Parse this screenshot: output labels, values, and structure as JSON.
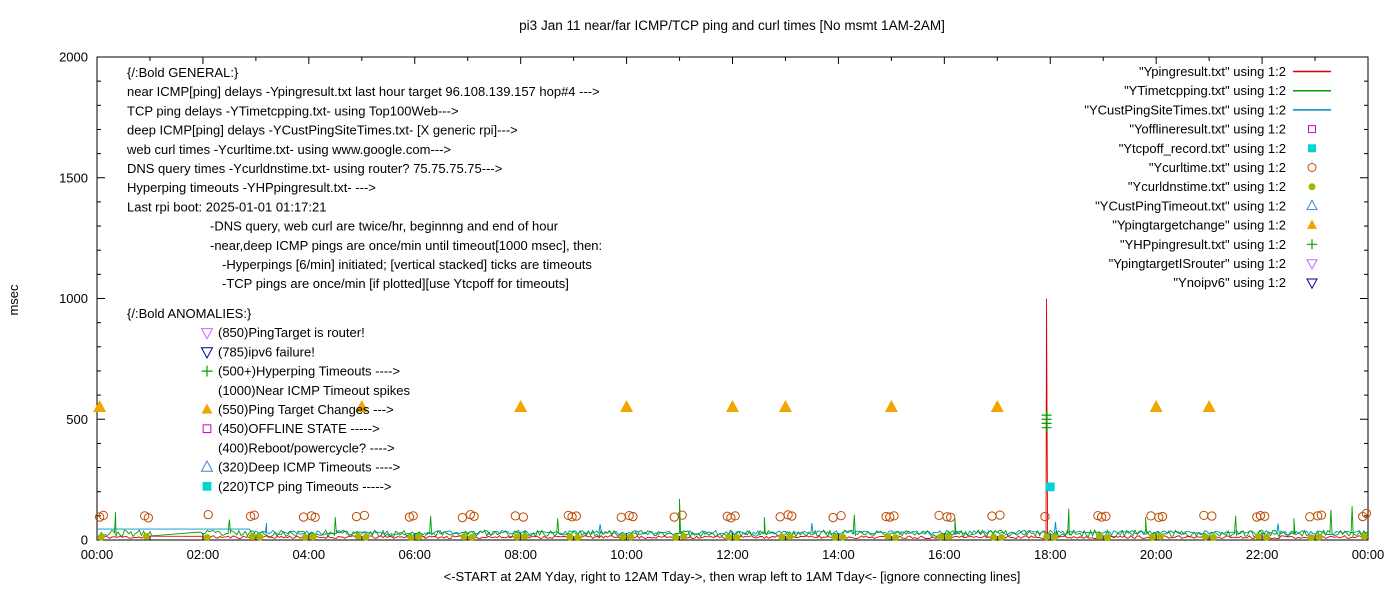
{
  "chart_data": {
    "type": "line",
    "title": "pi3 Jan 11  near/far ICMP/TCP ping and curl times [No msmt 1AM-2AM]",
    "xlabel": "<-START at 2AM Yday, right to 12AM Tday->, then wrap left to 1AM Tday<- [ignore connecting lines]",
    "ylabel": "msec",
    "ylim": [
      0,
      2000
    ],
    "x_range_hours": [
      0,
      24
    ],
    "x_tick_labels": [
      "00:00",
      "02:00",
      "04:00",
      "06:00",
      "08:00",
      "10:00",
      "12:00",
      "14:00",
      "16:00",
      "18:00",
      "20:00",
      "22:00",
      "00:00"
    ],
    "y_tick_values": [
      0,
      500,
      1000,
      1500,
      2000
    ],
    "y_tick_labels": [
      "0",
      "500",
      "1000",
      "1500",
      "2000"
    ],
    "grid": false,
    "legend_position": "top-right",
    "colors": {
      "red": "#dd0000",
      "green": "#00a000",
      "blue": "#0088cc",
      "magenta": "#cc00cc",
      "cyan": "#00d5d5",
      "curl": "#c04a00",
      "dns": "#a8b400",
      "tri_blue": "#4682d0",
      "target_change": "#f0a500",
      "violet": "#cc66ff",
      "navy": "#000090"
    },
    "legend": [
      {
        "label": "\"Ypingresult.txt\" using 1:2",
        "sample": "line",
        "color": "#dd0000"
      },
      {
        "label": "\"YTimetcpping.txt\" using 1:2",
        "sample": "line",
        "color": "#00a000"
      },
      {
        "label": "\"YCustPingSiteTimes.txt\" using 1:2",
        "sample": "line",
        "color": "#0088cc"
      },
      {
        "label": "\"Yofflineresult.txt\" using 1:2",
        "sample": "square-open",
        "color": "#cc00cc"
      },
      {
        "label": "\"Ytcpoff_record.txt\" using 1:2",
        "sample": "square-filled",
        "color": "#00d5d5"
      },
      {
        "label": "\"Ycurltime.txt\" using 1:2",
        "sample": "circle-open",
        "color": "#c04a00"
      },
      {
        "label": "\"Ycurldnstime.txt\" using 1:2",
        "sample": "circle-filled",
        "color": "#a8b400"
      },
      {
        "label": "\"YCustPingTimeout.txt\" using 1:2",
        "sample": "triangle-up-open",
        "color": "#4682d0"
      },
      {
        "label": "\"Ypingtargetchange\" using 1:2",
        "sample": "triangle-up-filled",
        "color": "#f0a500"
      },
      {
        "label": "\"YHPpingresult.txt\" using 1:2",
        "sample": "plus",
        "color": "#00a000"
      },
      {
        "label": "\"YpingtargetISrouter\" using 1:2",
        "sample": "triangle-down-open",
        "color": "#cc66ff"
      },
      {
        "label": "\"Ynoipv6\" using 1:2",
        "sample": "triangle-down-open",
        "color": "#000090"
      }
    ],
    "series": {
      "near_icmp": {
        "name": "Ypingresult.txt",
        "base": 12,
        "amp": 6,
        "step": 0.04,
        "seed": 11,
        "color": "#dd0000",
        "spikes": [
          [
            17.93,
            1000
          ]
        ]
      },
      "tcp_ping": {
        "name": "YTimetcpping.txt",
        "base": 27,
        "amp": 14,
        "step": 0.04,
        "seed": 23,
        "color": "#00a000",
        "spikes": [
          [
            0.35,
            115
          ],
          [
            2.5,
            85
          ],
          [
            4.5,
            95
          ],
          [
            6.3,
            100
          ],
          [
            8.7,
            90
          ],
          [
            11.0,
            170
          ],
          [
            12.6,
            95
          ],
          [
            14.3,
            105
          ],
          [
            16.2,
            90
          ],
          [
            18.35,
            130
          ],
          [
            19.8,
            95
          ],
          [
            21.5,
            100
          ],
          [
            22.6,
            90
          ],
          [
            23.3,
            125
          ],
          [
            23.7,
            140
          ]
        ]
      },
      "deep_icmp": {
        "name": "YCustPingSiteTimes.txt",
        "base": 30,
        "amp": 9,
        "step": 0.04,
        "seed": 37,
        "color": "#0088cc",
        "flat": [
          {
            "from": 0,
            "to": 2.9,
            "value": 45
          }
        ],
        "spikes": [
          [
            3.2,
            70
          ],
          [
            9.5,
            65
          ],
          [
            13.5,
            70
          ],
          [
            18.1,
            75
          ],
          [
            22.3,
            68
          ]
        ]
      },
      "curl_points": [
        [
          0.05,
          95
        ],
        [
          0.12,
          102
        ],
        [
          0.9,
          100
        ],
        [
          0.97,
          92
        ],
        [
          2.1,
          105
        ],
        [
          2.9,
          98
        ],
        [
          2.97,
          103
        ],
        [
          3.9,
          95
        ],
        [
          4.05,
          100
        ],
        [
          4.12,
          94
        ],
        [
          4.9,
          97
        ],
        [
          5.05,
          102
        ],
        [
          5.9,
          95
        ],
        [
          5.97,
          100
        ],
        [
          6.9,
          93
        ],
        [
          7.05,
          105
        ],
        [
          7.12,
          98
        ],
        [
          7.9,
          100
        ],
        [
          8.05,
          95
        ],
        [
          8.9,
          102
        ],
        [
          8.97,
          96
        ],
        [
          9.05,
          99
        ],
        [
          9.9,
          94
        ],
        [
          10.05,
          101
        ],
        [
          10.12,
          97
        ],
        [
          10.9,
          95
        ],
        [
          11.05,
          103
        ],
        [
          11.9,
          98
        ],
        [
          11.97,
          92
        ],
        [
          12.05,
          100
        ],
        [
          12.9,
          96
        ],
        [
          13.05,
          104
        ],
        [
          13.12,
          99
        ],
        [
          13.9,
          93
        ],
        [
          14.05,
          101
        ],
        [
          14.9,
          97
        ],
        [
          14.97,
          95
        ],
        [
          15.05,
          100
        ],
        [
          15.9,
          102
        ],
        [
          16.05,
          96
        ],
        [
          16.12,
          94
        ],
        [
          16.9,
          99
        ],
        [
          17.05,
          103
        ],
        [
          17.9,
          97
        ],
        [
          18.9,
          101
        ],
        [
          18.97,
          95
        ],
        [
          19.05,
          98
        ],
        [
          19.9,
          100
        ],
        [
          20.05,
          94
        ],
        [
          20.12,
          97
        ],
        [
          20.9,
          102
        ],
        [
          21.05,
          99
        ],
        [
          21.9,
          95
        ],
        [
          21.97,
          101
        ],
        [
          22.05,
          98
        ],
        [
          22.9,
          96
        ],
        [
          23.05,
          100
        ],
        [
          23.12,
          103
        ],
        [
          23.9,
          97
        ],
        [
          23.97,
          110
        ]
      ],
      "dns_points": [
        [
          0.08,
          12
        ],
        [
          0.93,
          15
        ],
        [
          2.08,
          10
        ],
        [
          2.93,
          14
        ],
        [
          3.08,
          12
        ],
        [
          3.93,
          11
        ],
        [
          4.08,
          13
        ],
        [
          4.93,
          15
        ],
        [
          5.08,
          12
        ],
        [
          5.93,
          10
        ],
        [
          6.08,
          14
        ],
        [
          6.93,
          14
        ],
        [
          7.08,
          11
        ],
        [
          7.93,
          13
        ],
        [
          8.08,
          15
        ],
        [
          8.93,
          12
        ],
        [
          9.08,
          10
        ],
        [
          9.93,
          14
        ],
        [
          10.08,
          13
        ],
        [
          10.93,
          11
        ],
        [
          11.08,
          15
        ],
        [
          11.93,
          12
        ],
        [
          12.08,
          10
        ],
        [
          12.93,
          13
        ],
        [
          13.08,
          14
        ],
        [
          13.93,
          11
        ],
        [
          14.08,
          12
        ],
        [
          14.93,
          15
        ],
        [
          15.08,
          10
        ],
        [
          15.93,
          13
        ],
        [
          16.08,
          14
        ],
        [
          16.93,
          12
        ],
        [
          17.08,
          11
        ],
        [
          17.93,
          13
        ],
        [
          18.08,
          12
        ],
        [
          18.93,
          15
        ],
        [
          19.08,
          10
        ],
        [
          19.93,
          12
        ],
        [
          20.08,
          14
        ],
        [
          20.93,
          13
        ],
        [
          21.08,
          11
        ],
        [
          21.93,
          15
        ],
        [
          22.08,
          12
        ],
        [
          22.93,
          10
        ],
        [
          23.08,
          13
        ],
        [
          23.93,
          14
        ]
      ],
      "ping_target_change_value": 550,
      "ping_target_change_hours": [
        0.05,
        5.0,
        8.0,
        10.0,
        12.0,
        13.0,
        15.0,
        17.0,
        20.0,
        21.0
      ],
      "hyperping_timeout_points": [
        [
          17.93,
          465
        ],
        [
          17.93,
          483
        ],
        [
          17.93,
          500
        ],
        [
          17.93,
          517
        ]
      ],
      "tcp_timeout_points": [
        [
          18.0,
          220
        ]
      ]
    },
    "annotations": {
      "general": {
        "header": "{/:Bold GENERAL:}",
        "lines": [
          {
            "indent": 0,
            "text": "near ICMP[ping] delays -Ypingresult.txt last hour target 96.108.139.157 hop#4 --->"
          },
          {
            "indent": 0,
            "text": "TCP ping delays -YTimetcpping.txt- using Top100Web--->"
          },
          {
            "indent": 0,
            "text": "deep ICMP[ping] delays -YCustPingSiteTimes.txt- [X generic rpi]--->"
          },
          {
            "indent": 0,
            "text": "web curl times -Ycurltime.txt- using www.google.com--->"
          },
          {
            "indent": 0,
            "text": "DNS query times -Ycurldnstime.txt- using router? 75.75.75.75--->"
          },
          {
            "indent": 0,
            "text": "Hyperping timeouts -YHPpingresult.txt- --->"
          },
          {
            "indent": 0,
            "text": "Last rpi boot: 2025-01-01 01:17:21"
          },
          {
            "indent": 1,
            "text": "-DNS query, web curl are twice/hr, beginnng and end of hour"
          },
          {
            "indent": 1,
            "text": "-near,deep ICMP pings are once/min until timeout[1000 msec], then:"
          },
          {
            "indent": 2,
            "text": "-Hyperpings [6/min] initiated; [vertical stacked] ticks are timeouts"
          },
          {
            "indent": 2,
            "text": "-TCP pings are once/min [if plotted][use Ytcpoff for timeouts]"
          }
        ]
      },
      "anomalies": {
        "header": "{/:Bold ANOMALIES:}",
        "lines": [
          {
            "marker": "triangle-down-open",
            "color": "#cc66ff",
            "text": "(850)PingTarget is router!"
          },
          {
            "marker": "triangle-down-open",
            "color": "#000090",
            "text": "(785)ipv6 failure!"
          },
          {
            "marker": "plus",
            "color": "#00a000",
            "text": "(500+)Hyperping Timeouts ---->"
          },
          {
            "marker": null,
            "color": null,
            "text": "(1000)Near ICMP Timeout spikes"
          },
          {
            "marker": "triangle-up-filled",
            "color": "#f0a500",
            "text": "(550)Ping Target Changes --->"
          },
          {
            "marker": "square-open",
            "color": "#cc00cc",
            "text": "(450)OFFLINE STATE ----->"
          },
          {
            "marker": null,
            "color": null,
            "text": "(400)Reboot/powercycle? ---->"
          },
          {
            "marker": "triangle-up-open",
            "color": "#4682d0",
            "text": "(320)Deep ICMP Timeouts ---->"
          },
          {
            "marker": "square-filled",
            "color": "#00d5d5",
            "text": "(220)TCP ping Timeouts ----->"
          }
        ]
      }
    }
  }
}
